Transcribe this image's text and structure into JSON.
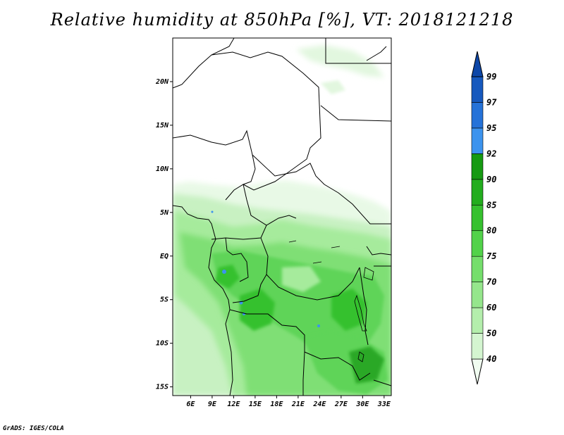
{
  "title": "Relative humidity at 850hPa [%], VT: 2018121218",
  "credit": "GrADS: IGES/COLA",
  "map": {
    "lon_range": [
      3.5,
      34
    ],
    "lat_range": [
      -16,
      25
    ],
    "lat_ticks": [
      {
        "value": 20,
        "label": "20N"
      },
      {
        "value": 15,
        "label": "15N"
      },
      {
        "value": 10,
        "label": "10N"
      },
      {
        "value": 5,
        "label": "5N"
      },
      {
        "value": 0,
        "label": "EQ"
      },
      {
        "value": -5,
        "label": "5S"
      },
      {
        "value": -10,
        "label": "10S"
      },
      {
        "value": -15,
        "label": "15S"
      }
    ],
    "lon_ticks": [
      {
        "value": 6,
        "label": "6E"
      },
      {
        "value": 9,
        "label": "9E"
      },
      {
        "value": 12,
        "label": "12E"
      },
      {
        "value": 15,
        "label": "15E"
      },
      {
        "value": 18,
        "label": "18E"
      },
      {
        "value": 21,
        "label": "21E"
      },
      {
        "value": 24,
        "label": "24E"
      },
      {
        "value": 27,
        "label": "27E"
      },
      {
        "value": 30,
        "label": "30E"
      },
      {
        "value": 33,
        "label": "33E"
      }
    ]
  },
  "colorbar": {
    "levels": [
      "40",
      "50",
      "60",
      "70",
      "75",
      "80",
      "85",
      "90",
      "92",
      "95",
      "97",
      "99"
    ],
    "colors": [
      "#f0fcf0",
      "#d4f5d0",
      "#b4eeac",
      "#95e68c",
      "#75de6c",
      "#52d24a",
      "#36c12f",
      "#23ad1e",
      "#169a12",
      "#3c93ee",
      "#2572d8",
      "#1659be",
      "#0d47a8"
    ],
    "extend": "both"
  }
}
